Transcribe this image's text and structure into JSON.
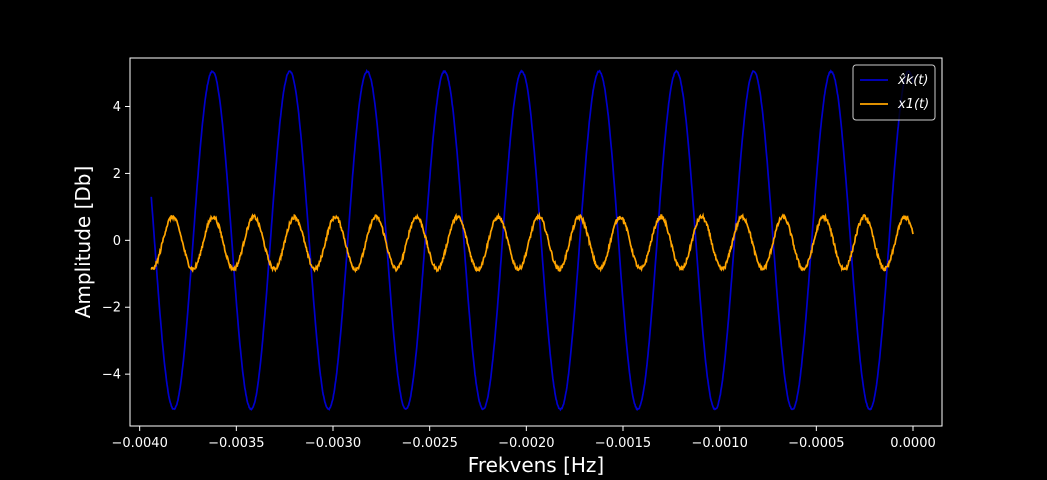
{
  "chart_data": {
    "type": "line",
    "title": "",
    "xlabel": "Frekvens [Hz]",
    "ylabel": "Amplitude [Db]",
    "xlim": [
      -0.00405,
      0.00015
    ],
    "ylim": [
      -5.55,
      5.45
    ],
    "x_ticks": [
      -0.004,
      -0.0035,
      -0.003,
      -0.0025,
      -0.002,
      -0.0015,
      -0.001,
      -0.0005,
      0.0
    ],
    "x_tick_labels": [
      "−0.0040",
      "−0.0035",
      "−0.0030",
      "−0.0025",
      "−0.0020",
      "−0.0015",
      "−0.0010",
      "−0.0005",
      "0.0000"
    ],
    "y_ticks": [
      -4,
      -2,
      0,
      2,
      4
    ],
    "y_tick_labels": [
      "−4",
      "−2",
      "0",
      "2",
      "4"
    ],
    "grid": false,
    "legend_position": "top-right",
    "series": [
      {
        "name": "x̂k(t)",
        "color": "#0000cd",
        "amplitude": 5.05,
        "frequency_hz": 2500,
        "phase_rad": 1.94,
        "x_start": -0.00394,
        "x_end": 0.0,
        "noise": 0.02
      },
      {
        "name": "x1(t)",
        "color": "#ffa500",
        "amplitude": 0.78,
        "frequency_hz": 4750,
        "phase_rad": 2.79,
        "offset": -0.08,
        "x_start": -0.00394,
        "x_end": 0.0,
        "noise": 0.06
      }
    ]
  }
}
